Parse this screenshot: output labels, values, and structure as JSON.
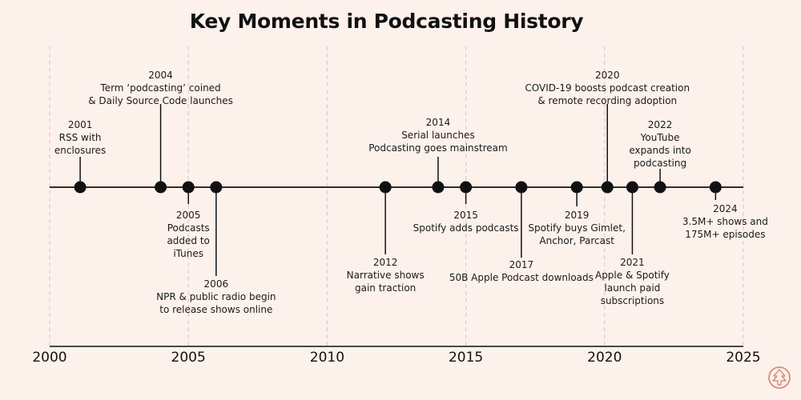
{
  "chart_data": {
    "type": "timeline",
    "title": "Key Moments in Podcasting History",
    "xlim": [
      2000,
      2025
    ],
    "xticks": [
      2000,
      2005,
      2010,
      2015,
      2020,
      2025
    ],
    "grid": "vertical dashed at major ticks",
    "events": [
      {
        "year": 2001.1,
        "side": "above",
        "lines": [
          "2001",
          "RSS with",
          "enclosures"
        ]
      },
      {
        "year": 2004,
        "side": "above",
        "lines": [
          "2004",
          "Term ‘podcasting’ coined",
          "& Daily Source Code launches"
        ]
      },
      {
        "year": 2005,
        "side": "below",
        "lines": [
          "2005",
          "Podcasts",
          "added to",
          "iTunes"
        ]
      },
      {
        "year": 2006,
        "side": "below",
        "lines": [
          "2006",
          "NPR & public radio begin",
          "to release shows online"
        ]
      },
      {
        "year": 2012.1,
        "side": "below",
        "lines": [
          "2012",
          "Narrative shows",
          "gain traction"
        ]
      },
      {
        "year": 2014,
        "side": "above",
        "lines": [
          "2014",
          "Serial launches",
          "Podcasting goes mainstream"
        ]
      },
      {
        "year": 2015,
        "side": "below",
        "lines": [
          "2015",
          "Spotify adds podcasts"
        ]
      },
      {
        "year": 2017,
        "side": "below",
        "lines": [
          "2017",
          "50B Apple Podcast downloads"
        ]
      },
      {
        "year": 2019,
        "side": "below",
        "lines": [
          "2019",
          "Spotify buys Gimlet,",
          "Anchor, Parcast"
        ]
      },
      {
        "year": 2020.1,
        "side": "above",
        "lines": [
          "2020",
          "COVID-19 boosts podcast creation",
          "& remote recording adoption"
        ]
      },
      {
        "year": 2021,
        "side": "below",
        "lines": [
          "2021",
          "Apple & Spotify",
          "launch paid",
          "subscriptions"
        ]
      },
      {
        "year": 2022,
        "side": "above",
        "lines": [
          "2022",
          "YouTube",
          "expands into",
          "podcasting"
        ]
      },
      {
        "year": 2024,
        "side": "below",
        "lines": [
          "2024",
          "3.5M+ shows and",
          "175M+ episodes"
        ]
      }
    ]
  },
  "colors": {
    "background": "#fdf1ec",
    "line": "#111111",
    "gridline": "#e3c9cf"
  },
  "logo_icon": "pine-tree-in-circle-logo-icon"
}
